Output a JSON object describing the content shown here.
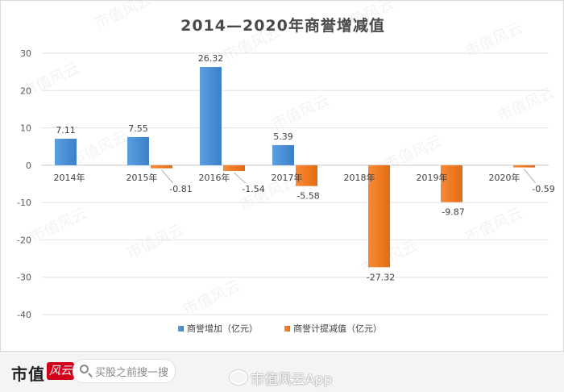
{
  "chart_data": {
    "type": "bar",
    "title": "2014—2020年商誉增减值",
    "categories": [
      "2014年",
      "2015年",
      "2016年",
      "2017年",
      "2018年",
      "2019年",
      "2020年"
    ],
    "series": [
      {
        "name": "商誉增加（亿元）",
        "color": "#4a90d9",
        "values": [
          7.11,
          7.55,
          26.32,
          5.39,
          null,
          null,
          null
        ]
      },
      {
        "name": "商誉计提减值（亿元）",
        "color": "#f07c22",
        "values": [
          null,
          -0.81,
          -1.54,
          -5.58,
          -27.32,
          -9.87,
          -0.59
        ]
      }
    ],
    "ylim": [
      -40,
      30
    ],
    "yticks": [
      30,
      20,
      10,
      0,
      -10,
      -20,
      -30,
      -40
    ],
    "legend_position": "bottom",
    "grid": true
  },
  "footer": {
    "logo_text": "市值",
    "logo_badge": "风云",
    "search_placeholder": "买股之前搜一搜",
    "weibo_text": "市值风云App"
  },
  "watermark": "市值风云"
}
